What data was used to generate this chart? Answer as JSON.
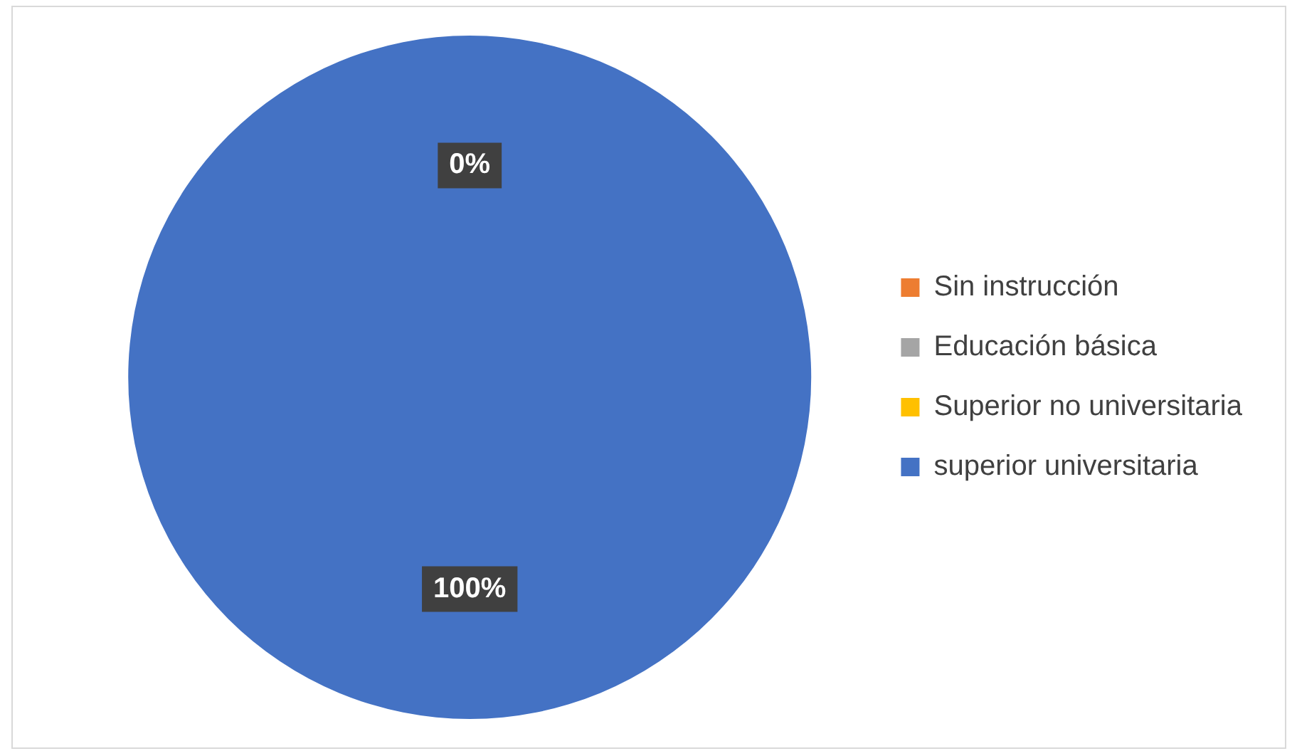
{
  "chart_data": {
    "type": "pie",
    "categories": [
      "Sin instrucción",
      "Educación básica",
      "Superior no universitaria",
      "superior universitaria"
    ],
    "values": [
      0,
      0,
      0,
      100
    ],
    "colors": [
      "#ed7d31",
      "#a5a5a5",
      "#ffc000",
      "#4472c4"
    ],
    "value_labels": [
      "0%",
      null,
      null,
      "100%"
    ],
    "legend": "right"
  }
}
